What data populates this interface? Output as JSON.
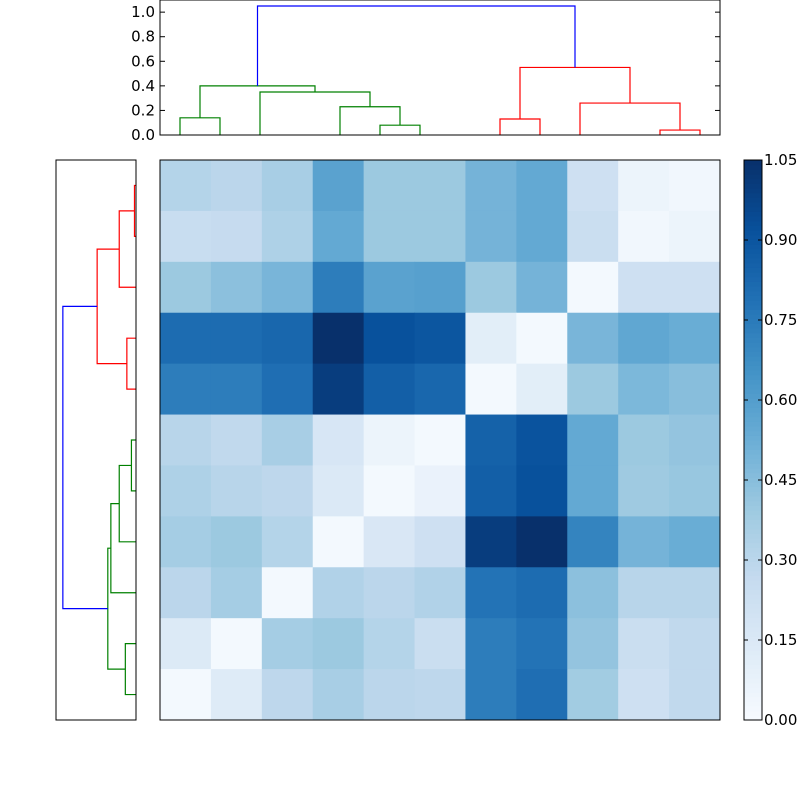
{
  "chart_data": [
    {
      "type": "dendrogram",
      "panel": "top",
      "ytick_labels": [
        "0.0",
        "0.2",
        "0.4",
        "0.6",
        "0.8",
        "1.0"
      ],
      "ylim": [
        0,
        1.05
      ],
      "ytick_values": [
        0.0,
        0.2,
        0.4,
        0.6,
        0.8,
        1.0
      ],
      "links": [
        {
          "color": "#008000",
          "left": [
            0.5,
            0.0
          ],
          "right": [
            1.5,
            0.0
          ],
          "height": 0.14
        },
        {
          "color": "#008000",
          "left": [
            5.5,
            0.0
          ],
          "right": [
            6.5,
            0.0
          ],
          "height": 0.08
        },
        {
          "color": "#008000",
          "left": [
            4.5,
            0.0
          ],
          "right": [
            6.0,
            0.08
          ],
          "height": 0.23
        },
        {
          "color": "#008000",
          "left": [
            2.5,
            0.0
          ],
          "right": [
            5.25,
            0.23
          ],
          "height": 0.35
        },
        {
          "color": "#008000",
          "left": [
            1.0,
            0.14
          ],
          "right": [
            3.875,
            0.35
          ],
          "height": 0.4
        },
        {
          "color": "#ff0000",
          "left": [
            8.5,
            0.0
          ],
          "right": [
            9.5,
            0.0
          ],
          "height": 0.13
        },
        {
          "color": "#ff0000",
          "left": [
            12.5,
            0.0
          ],
          "right": [
            13.5,
            0.0
          ],
          "height": 0.04
        },
        {
          "color": "#ff0000",
          "left": [
            10.5,
            0.0
          ],
          "right": [
            13.0,
            0.04
          ],
          "height": 0.26
        },
        {
          "color": "#ff0000",
          "left": [
            9.0,
            0.13
          ],
          "right": [
            11.75,
            0.26
          ],
          "height": 0.55
        },
        {
          "color": "#0000ff",
          "left": [
            2.4375,
            0.4
          ],
          "right": [
            10.375,
            0.55
          ],
          "height": 1.05
        }
      ],
      "xlim": [
        0,
        14
      ]
    },
    {
      "type": "dendrogram",
      "panel": "left",
      "orientation": "left",
      "xlim": [
        1.05,
        0
      ],
      "links": [
        {
          "color": "#ff0000",
          "a": [
            0.5,
            0.0
          ],
          "b": [
            1.5,
            0.0
          ],
          "height": 0.02
        },
        {
          "color": "#ff0000",
          "a": [
            1.0,
            0.02
          ],
          "b": [
            2.5,
            0.0
          ],
          "height": 0.22
        },
        {
          "color": "#ff0000",
          "a": [
            3.5,
            0.0
          ],
          "b": [
            4.5,
            0.0
          ],
          "height": 0.12
        },
        {
          "color": "#ff0000",
          "a": [
            1.75,
            0.22
          ],
          "b": [
            4.0,
            0.12
          ],
          "height": 0.51
        },
        {
          "color": "#008000",
          "a": [
            5.5,
            0.0
          ],
          "b": [
            6.5,
            0.0
          ],
          "height": 0.06
        },
        {
          "color": "#008000",
          "a": [
            6.0,
            0.06
          ],
          "b": [
            7.5,
            0.0
          ],
          "height": 0.22
        },
        {
          "color": "#008000",
          "a": [
            6.75,
            0.22
          ],
          "b": [
            8.5,
            0.0
          ],
          "height": 0.33
        },
        {
          "color": "#008000",
          "a": [
            9.5,
            0.0
          ],
          "b": [
            10.5,
            0.0
          ],
          "height": 0.14
        },
        {
          "color": "#008000",
          "a": [
            7.625,
            0.33
          ],
          "b": [
            10.0,
            0.14
          ],
          "height": 0.37
        },
        {
          "color": "#0000ff",
          "a": [
            2.875,
            0.51
          ],
          "b": [
            8.8125,
            0.37
          ],
          "height": 0.96
        }
      ],
      "ylim": [
        0,
        11
      ]
    },
    {
      "type": "heatmap",
      "colormap": "Blues",
      "vmin": 0.0,
      "vmax": 1.05,
      "rows": 11,
      "cols": 11,
      "values": [
        [
          0.32,
          0.3,
          0.36,
          0.58,
          0.4,
          0.4,
          0.5,
          0.55,
          0.22,
          0.06,
          0.03
        ],
        [
          0.25,
          0.26,
          0.34,
          0.55,
          0.4,
          0.4,
          0.5,
          0.55,
          0.24,
          0.03,
          0.06
        ],
        [
          0.4,
          0.44,
          0.49,
          0.74,
          0.58,
          0.59,
          0.4,
          0.5,
          0.02,
          0.22,
          0.22
        ],
        [
          0.81,
          0.81,
          0.83,
          1.05,
          0.92,
          0.9,
          0.11,
          0.02,
          0.49,
          0.56,
          0.53
        ],
        [
          0.74,
          0.74,
          0.8,
          1.0,
          0.86,
          0.83,
          0.02,
          0.11,
          0.4,
          0.48,
          0.45
        ],
        [
          0.31,
          0.28,
          0.36,
          0.17,
          0.06,
          0.02,
          0.85,
          0.91,
          0.55,
          0.4,
          0.42
        ],
        [
          0.34,
          0.31,
          0.29,
          0.15,
          0.02,
          0.07,
          0.86,
          0.92,
          0.55,
          0.39,
          0.41
        ],
        [
          0.37,
          0.4,
          0.32,
          0.02,
          0.16,
          0.22,
          1.0,
          1.05,
          0.71,
          0.5,
          0.53
        ],
        [
          0.3,
          0.37,
          0.02,
          0.33,
          0.3,
          0.33,
          0.78,
          0.81,
          0.44,
          0.31,
          0.31
        ],
        [
          0.14,
          0.02,
          0.37,
          0.4,
          0.32,
          0.24,
          0.74,
          0.78,
          0.42,
          0.24,
          0.28
        ],
        [
          0.02,
          0.13,
          0.29,
          0.36,
          0.3,
          0.29,
          0.74,
          0.8,
          0.38,
          0.22,
          0.28
        ]
      ]
    },
    {
      "type": "colorbar",
      "tick_labels": [
        "0.00",
        "0.15",
        "0.30",
        "0.45",
        "0.60",
        "0.75",
        "0.90",
        "1.05"
      ],
      "tick_values": [
        0.0,
        0.15,
        0.3,
        0.45,
        0.6,
        0.75,
        0.9,
        1.05
      ],
      "range": [
        0.0,
        1.05
      ]
    }
  ]
}
